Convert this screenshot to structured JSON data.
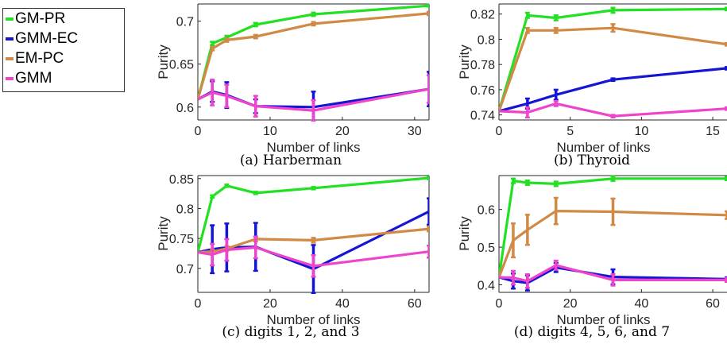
{
  "legend": [
    {
      "name": "GM-PR",
      "color": "#22e022"
    },
    {
      "name": "GMM-EC",
      "color": "#1515d6"
    },
    {
      "name": "EM-PC",
      "color": "#d08a45"
    },
    {
      "name": "GMM",
      "color": "#ee44cc"
    }
  ],
  "chart_data": [
    {
      "type": "line",
      "caption": "(a) Harberman",
      "xlabel": "Number of links",
      "ylabel": "Purity",
      "xlim": [
        0,
        32
      ],
      "ylim": [
        0.585,
        0.72
      ],
      "xticks": [
        0,
        10,
        20,
        30
      ],
      "yticks": [
        0.6,
        0.65,
        0.7
      ],
      "ytick_labels": [
        "0.6",
        "0.65",
        "0.7"
      ],
      "series": [
        {
          "name": "GM-PR",
          "color": "#22e022",
          "x": [
            0,
            2,
            4,
            8,
            16,
            32
          ],
          "y": [
            0.609,
            0.674,
            0.681,
            0.696,
            0.708,
            0.718
          ],
          "err": [
            0,
            0.002,
            0.002,
            0.002,
            0.002,
            0.001
          ]
        },
        {
          "name": "GMM-EC",
          "color": "#1515d6",
          "x": [
            0,
            2,
            4,
            8,
            16,
            32
          ],
          "y": [
            0.609,
            0.618,
            0.614,
            0.601,
            0.6,
            0.621
          ],
          "err": [
            0,
            0.012,
            0.015,
            0.008,
            0.018,
            0.02
          ]
        },
        {
          "name": "EM-PC",
          "color": "#d08a45",
          "x": [
            0,
            2,
            4,
            8,
            16,
            32
          ],
          "y": [
            0.609,
            0.668,
            0.678,
            0.682,
            0.697,
            0.709
          ],
          "err": [
            0,
            0.002,
            0.002,
            0.002,
            0.002,
            0.002
          ]
        },
        {
          "name": "GMM",
          "color": "#ee44cc",
          "x": [
            0,
            2,
            4,
            8,
            16,
            32
          ],
          "y": [
            0.609,
            0.617,
            0.613,
            0.601,
            0.596,
            0.621
          ],
          "err": [
            0,
            0.015,
            0.013,
            0.012,
            0.012,
            0.016
          ]
        }
      ]
    },
    {
      "type": "line",
      "caption": "(b) Thyroid",
      "xlabel": "Number of links",
      "ylabel": "Purity",
      "xlim": [
        0,
        16
      ],
      "ylim": [
        0.736,
        0.828
      ],
      "xticks": [
        0,
        5,
        10,
        15
      ],
      "yticks": [
        0.74,
        0.76,
        0.78,
        0.8,
        0.82
      ],
      "ytick_labels": [
        "0.74",
        "0.76",
        "0.78",
        "0.8",
        "0.82"
      ],
      "series": [
        {
          "name": "GM-PR",
          "color": "#22e022",
          "x": [
            0,
            2,
            4,
            8,
            16
          ],
          "y": [
            0.743,
            0.819,
            0.817,
            0.823,
            0.824
          ],
          "err": [
            0,
            0.002,
            0.002,
            0.002,
            0.001
          ]
        },
        {
          "name": "GMM-EC",
          "color": "#1515d6",
          "x": [
            0,
            2,
            4,
            8,
            16
          ],
          "y": [
            0.743,
            0.749,
            0.756,
            0.768,
            0.777
          ],
          "err": [
            0,
            0.004,
            0.004,
            0.001,
            0.001
          ]
        },
        {
          "name": "EM-PC",
          "color": "#d08a45",
          "x": [
            0,
            2,
            4,
            8,
            16
          ],
          "y": [
            0.743,
            0.807,
            0.807,
            0.809,
            0.796
          ],
          "err": [
            0,
            0.002,
            0.002,
            0.003,
            0.001
          ]
        },
        {
          "name": "GMM",
          "color": "#ee44cc",
          "x": [
            0,
            2,
            4,
            8,
            16
          ],
          "y": [
            0.743,
            0.742,
            0.749,
            0.739,
            0.745
          ],
          "err": [
            0,
            0.004,
            0.002,
            0.001,
            0.001
          ]
        }
      ]
    },
    {
      "type": "line",
      "caption": "(c) digits 1, 2, and 3",
      "xlabel": "Number of links",
      "ylabel": "Purity",
      "xlim": [
        0,
        64
      ],
      "ylim": [
        0.66,
        0.855
      ],
      "xticks": [
        0,
        20,
        40,
        60
      ],
      "yticks": [
        0.7,
        0.75,
        0.8,
        0.85
      ],
      "ytick_labels": [
        "0.7",
        "0.75",
        "0.8",
        "0.85"
      ],
      "series": [
        {
          "name": "GM-PR",
          "color": "#22e022",
          "x": [
            0,
            4,
            8,
            16,
            32,
            64
          ],
          "y": [
            0.727,
            0.82,
            0.838,
            0.826,
            0.834,
            0.851
          ],
          "err": [
            0,
            0.002,
            0.002,
            0.002,
            0.002,
            0.002
          ]
        },
        {
          "name": "GMM-EC",
          "color": "#1515d6",
          "x": [
            0,
            4,
            8,
            16,
            32,
            64
          ],
          "y": [
            0.727,
            0.732,
            0.735,
            0.736,
            0.699,
            0.795
          ],
          "err": [
            0,
            0.04,
            0.04,
            0.04,
            0.04,
            0.022
          ]
        },
        {
          "name": "EM-PC",
          "color": "#d08a45",
          "x": [
            0,
            4,
            8,
            16,
            32,
            64
          ],
          "y": [
            0.727,
            0.728,
            0.733,
            0.749,
            0.747,
            0.766
          ],
          "err": [
            0,
            0.004,
            0.004,
            0.004,
            0.004,
            0.004
          ]
        },
        {
          "name": "GMM",
          "color": "#ee44cc",
          "x": [
            0,
            4,
            8,
            16,
            32,
            64
          ],
          "y": [
            0.727,
            0.723,
            0.731,
            0.735,
            0.704,
            0.728
          ],
          "err": [
            0,
            0.018,
            0.018,
            0.018,
            0.018,
            0.01
          ]
        }
      ]
    },
    {
      "type": "line",
      "caption": "(d) digits 4, 5, 6, and 7",
      "xlabel": "Number of links",
      "ylabel": "Purity",
      "xlim": [
        0,
        64
      ],
      "ylim": [
        0.38,
        0.69
      ],
      "xticks": [
        0,
        20,
        40,
        60
      ],
      "yticks": [
        0.4,
        0.5,
        0.6
      ],
      "ytick_labels": [
        "0.4",
        "0.5",
        "0.6"
      ],
      "series": [
        {
          "name": "GM-PR",
          "color": "#22e022",
          "x": [
            0,
            4,
            8,
            16,
            32,
            64
          ],
          "y": [
            0.42,
            0.676,
            0.671,
            0.668,
            0.682,
            0.682
          ],
          "err": [
            0,
            0.006,
            0.006,
            0.006,
            0.006,
            0.004
          ]
        },
        {
          "name": "GMM-EC",
          "color": "#1515d6",
          "x": [
            0,
            4,
            8,
            16,
            32,
            64
          ],
          "y": [
            0.42,
            0.41,
            0.405,
            0.446,
            0.421,
            0.415
          ],
          "err": [
            0,
            0.02,
            0.02,
            0.012,
            0.02,
            0.005
          ]
        },
        {
          "name": "EM-PC",
          "color": "#d08a45",
          "x": [
            0,
            4,
            8,
            16,
            32,
            64
          ],
          "y": [
            0.42,
            0.518,
            0.546,
            0.596,
            0.594,
            0.585
          ],
          "err": [
            0,
            0.045,
            0.04,
            0.035,
            0.035,
            0.01
          ]
        },
        {
          "name": "GMM",
          "color": "#ee44cc",
          "x": [
            0,
            4,
            8,
            16,
            32,
            64
          ],
          "y": [
            0.42,
            0.419,
            0.41,
            0.452,
            0.413,
            0.413
          ],
          "err": [
            0,
            0.018,
            0.018,
            0.012,
            0.015,
            0.005
          ]
        }
      ]
    }
  ]
}
